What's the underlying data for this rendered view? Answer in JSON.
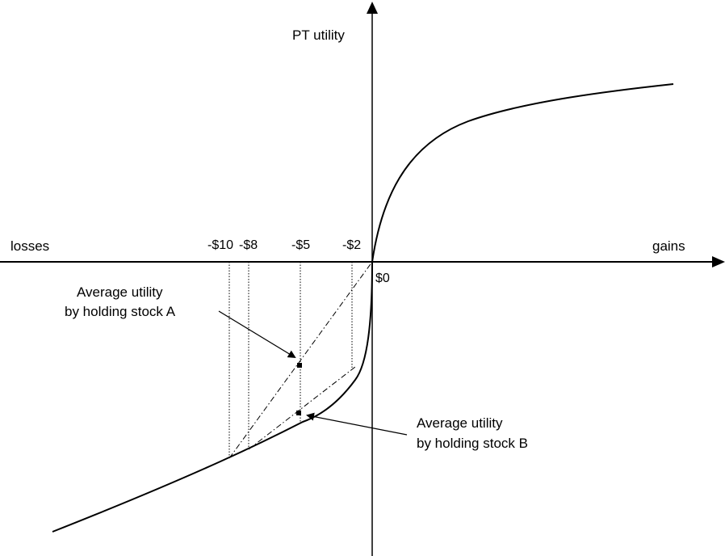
{
  "axes": {
    "y_label": "PT utility",
    "x_left_label": "losses",
    "x_right_label": "gains",
    "origin_label": "$0"
  },
  "ticks": [
    "-$10",
    "-$8",
    "-$5",
    "-$2"
  ],
  "annotations": {
    "stock_a": [
      "Average utility",
      "by holding stock A"
    ],
    "stock_b": [
      "Average utility",
      "by holding stock B"
    ]
  },
  "colors": {
    "ink": "#000000",
    "background": "#ffffff"
  }
}
